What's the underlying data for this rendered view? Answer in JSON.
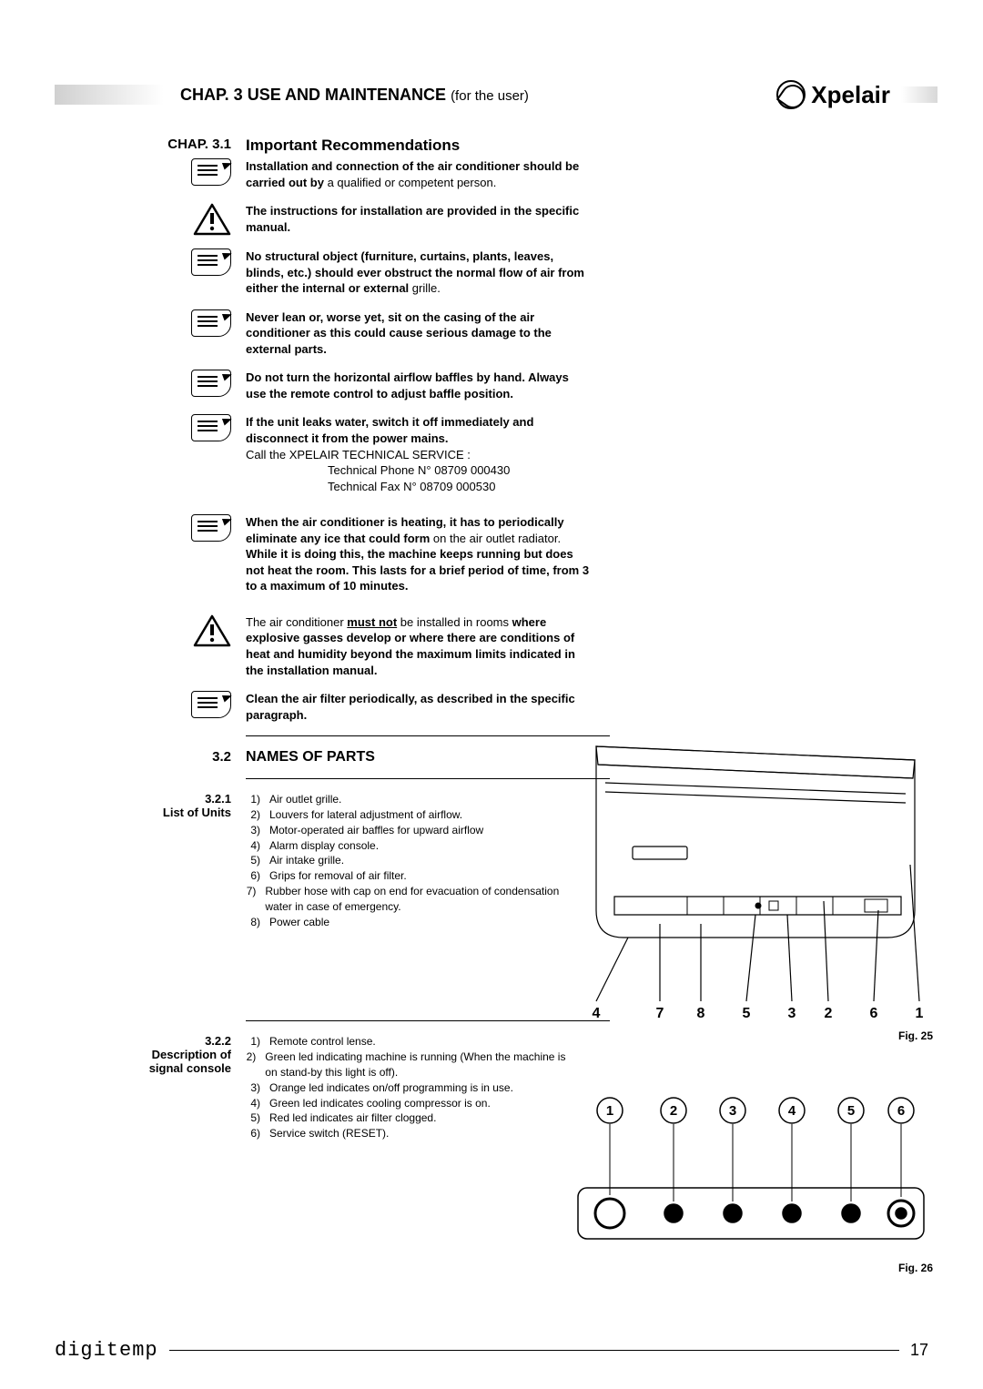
{
  "header": {
    "chapter_title": "CHAP. 3 USE AND MAINTENANCE",
    "chapter_sub": "(for the user)",
    "brand": "Xpelair"
  },
  "sec31": {
    "label": "CHAP. 3.1",
    "heading": "Important Recommendations",
    "items": [
      {
        "icon": "note",
        "bold": "Installation and connection of the air conditioner should be carried out by ",
        "rest": "a qualified or competent person."
      },
      {
        "icon": "warn",
        "bold": "The instructions for installation are provided in the specific manual.",
        "rest": ""
      },
      {
        "icon": "note",
        "bold": "No structural object (furniture, curtains, plants, leaves, blinds, etc.) should ever obstruct the normal flow of air from either the internal or external ",
        "rest": "grille."
      },
      {
        "icon": "note",
        "bold": "Never lean or, worse yet, sit on the casing of the air conditioner as this could cause serious damage to the external parts.",
        "rest": ""
      },
      {
        "icon": "note",
        "bold": "Do not turn the horizontal airflow baffles by hand. Always use the remote control to adjust baffle position.",
        "rest": ""
      },
      {
        "icon": "note",
        "bold": "If the unit leaks water, switch it off immediately and disconnect it from the power mains.",
        "rest": "",
        "extra_plain": "Call the XPELAIR TECHNICAL SERVICE :",
        "extra_lines": [
          "Technical Phone N°  08709  000430",
          "Technical Fax N°      08709  000530"
        ]
      },
      {
        "icon": "note",
        "bold_pre": "When the air conditioner is heating, it has to periodically eliminate any ice that could form ",
        "plain_mid": "on the air outlet radiator. ",
        "bold_mid": "While it is doing this, the machine keeps running but does not heat the room. This lasts for a brief period of time, from 3 to a maximum of 10 minutes.",
        "rest": ""
      },
      {
        "icon": "warn",
        "plain_pre": "The air conditioner ",
        "underline_bold": "must not",
        "plain_mid": " be installed in rooms ",
        "bold_rest": "where explosive gasses develop or where there are conditions of heat and humidity beyond the maximum limits indicated in the installation manual."
      },
      {
        "icon": "note",
        "bold": "Clean the air filter periodically, as described in the specific paragraph.",
        "rest": ""
      }
    ]
  },
  "sec32": {
    "label": "3.2",
    "heading": "NAMES OF PARTS"
  },
  "sec321": {
    "label_num": "3.2.1",
    "label_text": "List of Units",
    "items": [
      "Air outlet grille.",
      "Louvers for lateral adjustment of airflow.",
      "Motor-operated air baffles for upward airflow",
      "Alarm display console.",
      "Air intake grille.",
      "Grips for removal of air filter.",
      "Rubber hose with cap on end for evacuation of condensation water in case of emergency.",
      "Power cable"
    ]
  },
  "sec322": {
    "label_num": "3.2.2",
    "label_text1": "Description of",
    "label_text2": "signal console",
    "items": [
      "Remote control lense.",
      "Green led indicating machine is running (When the machine is on stand-by this light is off).",
      "Orange led indicates on/off programming is in use.",
      "Green led indicates cooling compressor is on.",
      "Red led indicates air filter clogged.",
      "Service switch (RESET)."
    ]
  },
  "fig25": {
    "caption": "Fig. 25",
    "labels": [
      "4",
      "7",
      "8",
      "5",
      "3",
      "2",
      "6",
      "1"
    ]
  },
  "fig26": {
    "caption": "Fig. 26",
    "circles": [
      "1",
      "2",
      "3",
      "4",
      "5",
      "6"
    ]
  },
  "footer": {
    "brand": "digitemp",
    "page": "17"
  },
  "style": {
    "page_bg": "#ffffff",
    "text_color": "#000000",
    "body_font_size": 13,
    "heading_font_size": 17
  }
}
